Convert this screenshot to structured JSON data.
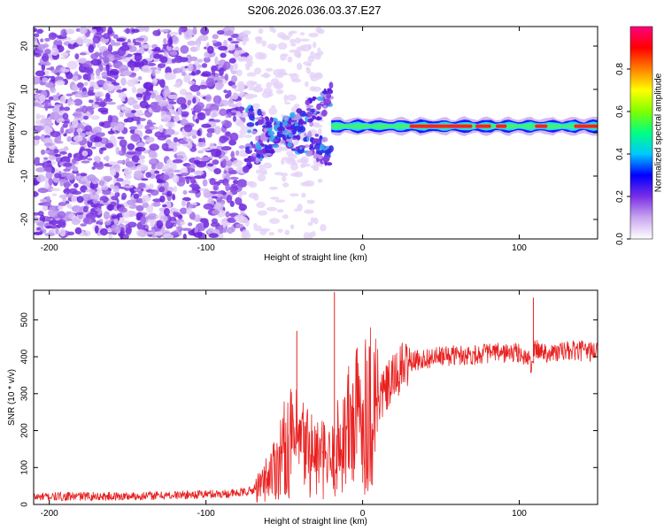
{
  "page": {
    "title": "S206.2026.036.03.37.E27"
  },
  "chart_data": [
    {
      "type": "heatmap",
      "title": "S206.2026.036.03.37.E27",
      "xlabel": "Height of straight line (km)",
      "ylabel": "Frequency (Hz)",
      "xlim": [
        -210,
        150
      ],
      "ylim": [
        -24.5,
        24.5
      ],
      "xticks": [
        -200,
        -100,
        0,
        100
      ],
      "yticks": [
        -20,
        -10,
        0,
        10,
        20
      ],
      "colorbar": {
        "label": "Normalized spectral amplitude",
        "range": [
          0,
          1
        ],
        "ticks": [
          0.0,
          0.2,
          0.4,
          0.6,
          0.8
        ],
        "colors": [
          "#ffffff",
          "#c9a6ee",
          "#7a2ee6",
          "#0000ff",
          "#00c8ff",
          "#00ff80",
          "#80ff00",
          "#ffff00",
          "#ff8000",
          "#ff0000",
          "#ff0080"
        ]
      },
      "regions": [
        {
          "name": "noise",
          "x_range": [
            -210,
            -75
          ],
          "freq_range": [
            -24,
            24
          ],
          "amplitude": 0.1
        },
        {
          "name": "transition",
          "x_range": [
            -75,
            -20
          ],
          "freq_range": [
            -9,
            11
          ],
          "amplitude": 0.3
        },
        {
          "name": "signal",
          "x_range": [
            -20,
            150
          ],
          "freq_center": 1.5,
          "amplitude": 0.95
        }
      ]
    },
    {
      "type": "line",
      "xlabel": "Height of straight line (km)",
      "ylabel": "SNR (10 * v/v)",
      "xlim": [
        -210,
        150
      ],
      "ylim": [
        0,
        580
      ],
      "xticks": [
        -200,
        -100,
        0,
        100
      ],
      "yticks": [
        0,
        100,
        200,
        300,
        400,
        500
      ],
      "color": "#e82020",
      "series": [
        {
          "name": "SNR",
          "x": [
            -210,
            -180,
            -150,
            -120,
            -100,
            -80,
            -70,
            -65,
            -60,
            -55,
            -50,
            -45,
            -40,
            -35,
            -30,
            -25,
            -20,
            -15,
            -10,
            -5,
            0,
            5,
            10,
            15,
            20,
            25,
            30,
            40,
            50,
            60,
            70,
            80,
            90,
            100,
            105,
            108,
            110,
            115,
            120,
            130,
            140,
            150
          ],
          "values": [
            20,
            22,
            22,
            25,
            28,
            30,
            38,
            50,
            80,
            110,
            150,
            170,
            160,
            150,
            130,
            120,
            110,
            160,
            200,
            230,
            250,
            270,
            285,
            310,
            340,
            370,
            385,
            395,
            400,
            405,
            405,
            410,
            410,
            410,
            395,
            380,
            420,
            415,
            410,
            415,
            415,
            415
          ]
        }
      ],
      "spikes": [
        {
          "x": -42,
          "value": 470
        },
        {
          "x": -18,
          "value": 575
        },
        {
          "x": 109,
          "value": 560
        }
      ]
    }
  ]
}
